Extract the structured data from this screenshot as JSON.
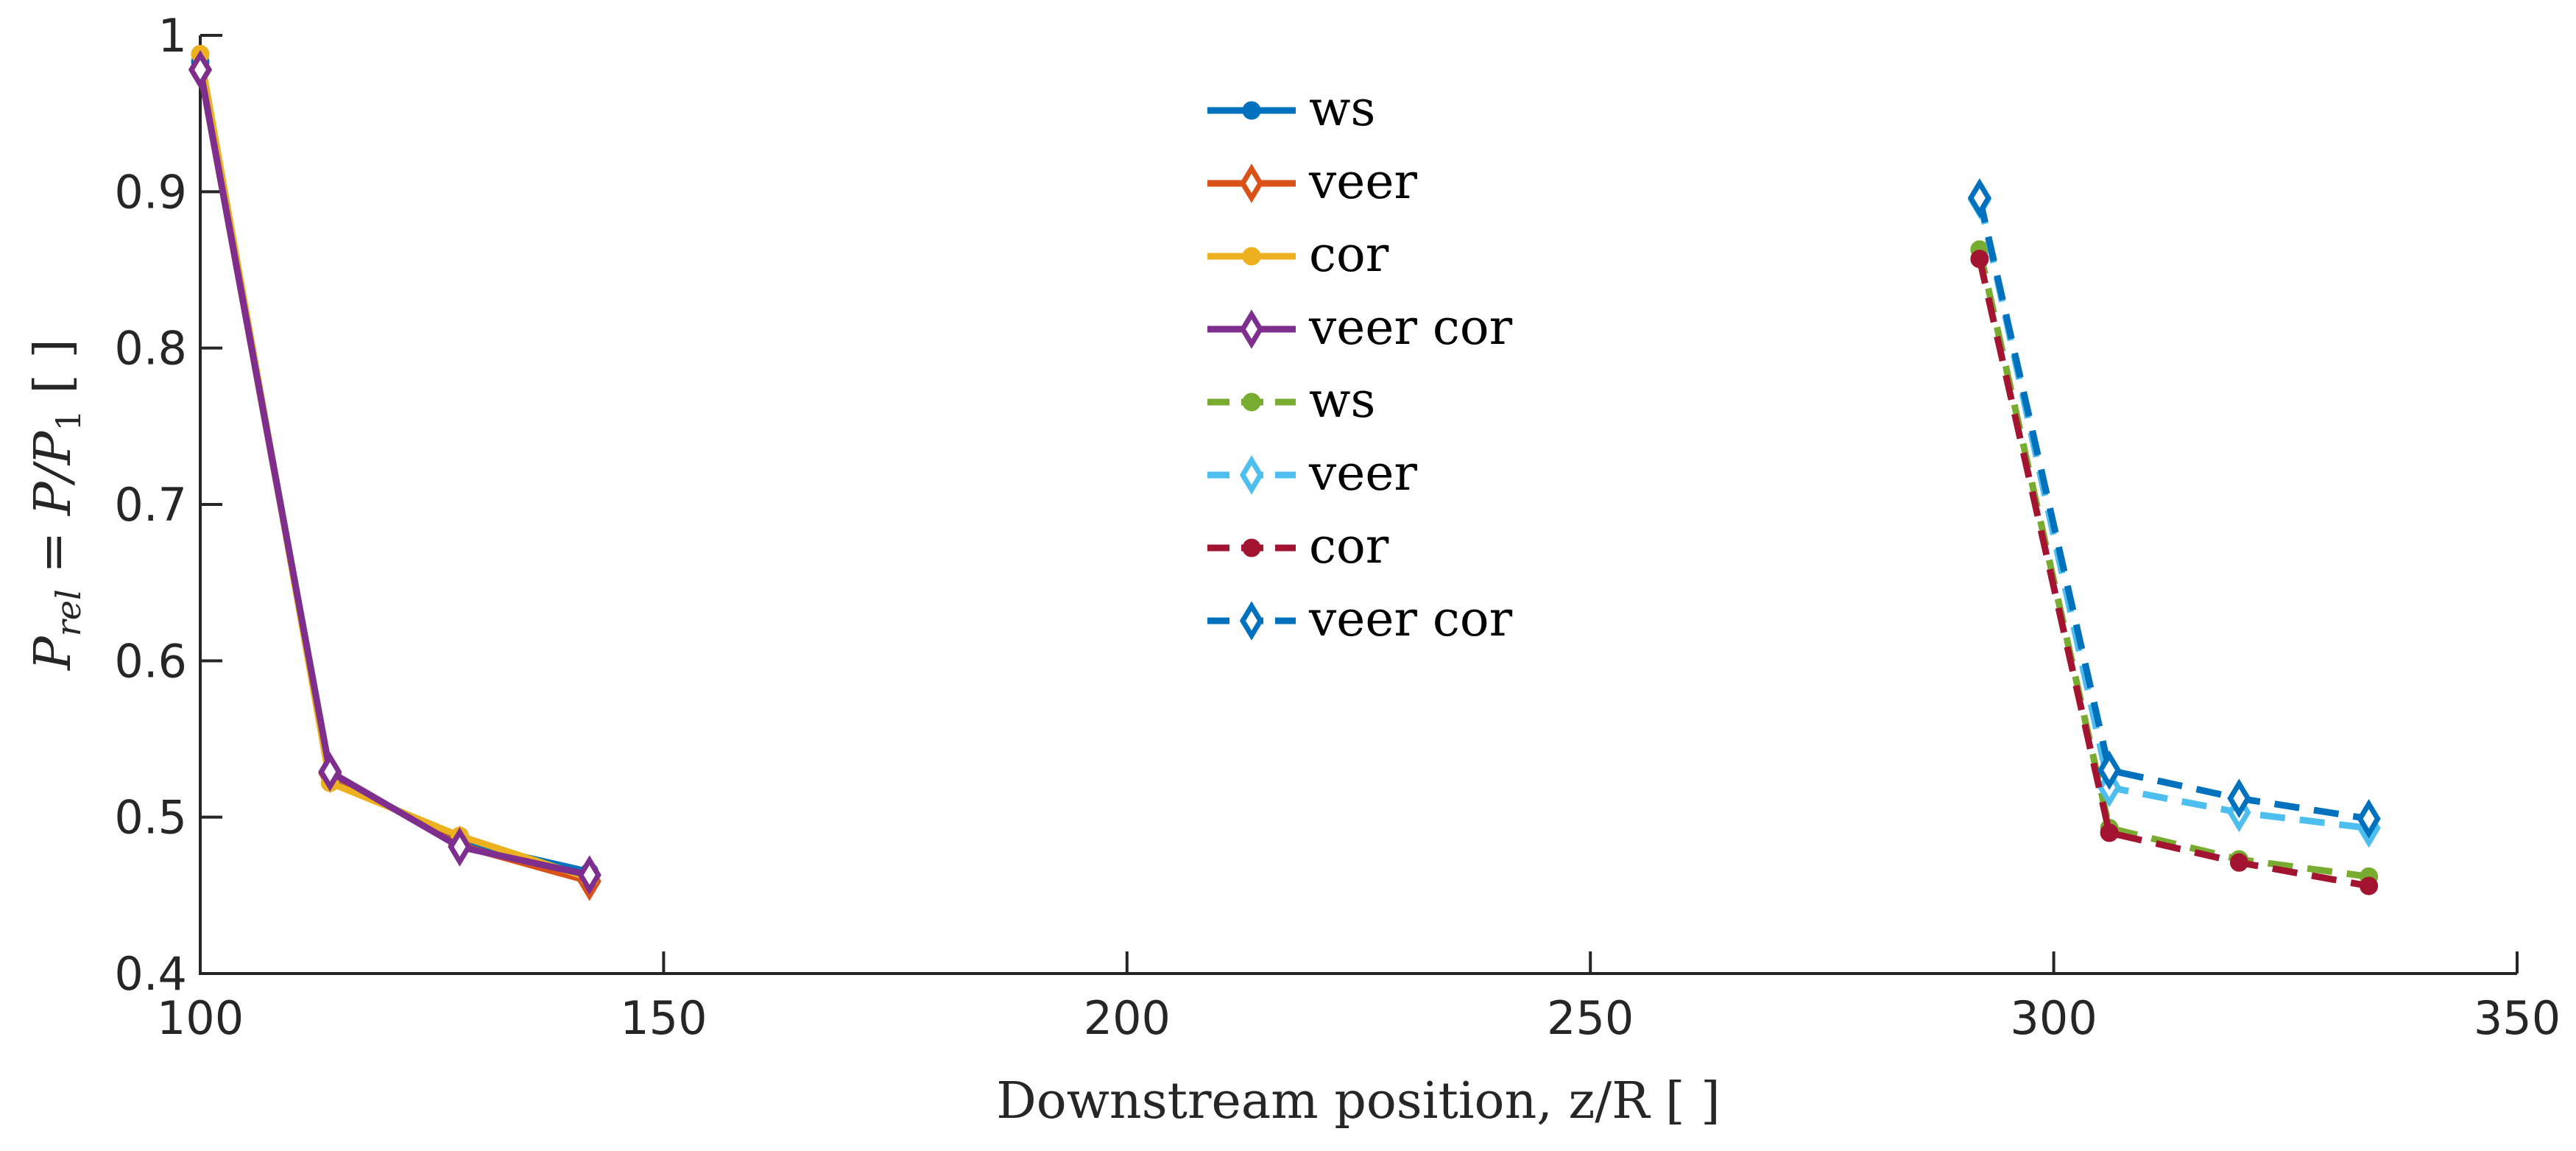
{
  "chart_data": {
    "type": "line",
    "xlabel": "Downstream position, z/R [ ]",
    "ylabel_parts": {
      "P": "P",
      "sub": "rel",
      "eq": " = P/P",
      "sub1": "1",
      "unit": " [ ]"
    },
    "xlim": [
      100,
      350
    ],
    "ylim": [
      0.4,
      1.0
    ],
    "x_ticks": [
      100,
      150,
      200,
      250,
      300,
      350
    ],
    "y_ticks": [
      0.4,
      0.5,
      0.6,
      0.7,
      0.8,
      0.9,
      1.0
    ],
    "x_tick_labels": [
      "100",
      "150",
      "200",
      "250",
      "300",
      "350"
    ],
    "y_tick_labels": [
      "0.4",
      "0.5",
      "0.6",
      "0.7",
      "0.8",
      "0.9",
      "1"
    ],
    "grid": false,
    "legend_position": "top-center",
    "series": [
      {
        "name": "ws",
        "color": "#0072BD",
        "dash": "solid",
        "marker": "circle",
        "marker_fill": true,
        "x": [
          100,
          114,
          128,
          142
        ],
        "y": [
          0.983,
          0.526,
          0.484,
          0.465
        ]
      },
      {
        "name": "veer",
        "color": "#D95319",
        "dash": "solid",
        "marker": "diamond",
        "marker_fill": false,
        "x": [
          100,
          114,
          128,
          142
        ],
        "y": [
          0.978,
          0.528,
          0.482,
          0.459
        ]
      },
      {
        "name": "cor",
        "color": "#EDB120",
        "dash": "solid",
        "marker": "circle",
        "marker_fill": true,
        "x": [
          100,
          114,
          128,
          142
        ],
        "y": [
          0.988,
          0.522,
          0.488,
          0.461
        ]
      },
      {
        "name": "veer cor",
        "color": "#7E2F8E",
        "dash": "solid",
        "marker": "diamond",
        "marker_fill": false,
        "x": [
          100,
          114,
          128,
          142
        ],
        "y": [
          0.978,
          0.529,
          0.481,
          0.463
        ]
      },
      {
        "name": "ws",
        "color": "#77AC30",
        "dash": "dashed",
        "marker": "circle",
        "marker_fill": true,
        "x": [
          292,
          306,
          320,
          334
        ],
        "y": [
          0.863,
          0.493,
          0.473,
          0.462
        ]
      },
      {
        "name": "veer",
        "color": "#4DBEEE",
        "dash": "dashed",
        "marker": "diamond",
        "marker_fill": false,
        "x": [
          292,
          306,
          320,
          334
        ],
        "y": [
          0.895,
          0.519,
          0.503,
          0.493
        ]
      },
      {
        "name": "cor",
        "color": "#A2142F",
        "dash": "dashed",
        "marker": "circle",
        "marker_fill": true,
        "x": [
          292,
          306,
          320,
          334
        ],
        "y": [
          0.857,
          0.49,
          0.471,
          0.456
        ]
      },
      {
        "name": "veer cor",
        "color": "#0072BD",
        "dash": "dashed",
        "marker": "diamond",
        "marker_fill": false,
        "x": [
          292,
          306,
          320,
          334
        ],
        "y": [
          0.896,
          0.53,
          0.512,
          0.499
        ]
      }
    ]
  }
}
